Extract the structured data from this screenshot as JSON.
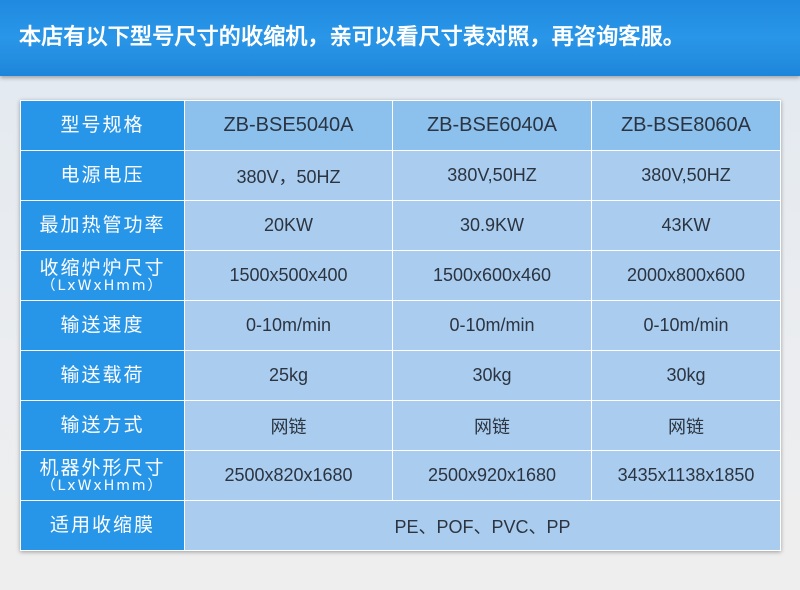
{
  "banner": {
    "text": "本店有以下型号尺寸的收缩机，亲可以看尺寸表对照，再咨询客服。"
  },
  "table": {
    "rows": [
      {
        "label": "型号规格",
        "sub": "",
        "values": [
          "ZB-BSE5040A",
          "ZB-BSE6040A",
          "ZB-BSE8060A"
        ]
      },
      {
        "label": "电源电压",
        "sub": "",
        "values": [
          "380V，50HZ",
          "380V,50HZ",
          "380V,50HZ"
        ]
      },
      {
        "label": "最加热管功率",
        "sub": "",
        "values": [
          "20KW",
          "30.9KW",
          "43KW"
        ]
      },
      {
        "label": "收缩炉炉尺寸",
        "sub": "（LxWxHmm）",
        "values": [
          "1500x500x400",
          "1500x600x460",
          "2000x800x600"
        ]
      },
      {
        "label": "输送速度",
        "sub": "",
        "values": [
          "0-10m/min",
          "0-10m/min",
          "0-10m/min"
        ]
      },
      {
        "label": "输送载荷",
        "sub": "",
        "values": [
          "25kg",
          "30kg",
          "30kg"
        ]
      },
      {
        "label": "输送方式",
        "sub": "",
        "values": [
          "网链",
          "网链",
          "网链"
        ]
      },
      {
        "label": "机器外形尺寸",
        "sub": "（LxWxHmm）",
        "values": [
          "2500x820x1680",
          "2500x920x1680",
          "3435x1138x1850"
        ]
      }
    ],
    "film": {
      "label": "适用收缩膜",
      "value": "PE、POF、PVC、PP"
    }
  }
}
